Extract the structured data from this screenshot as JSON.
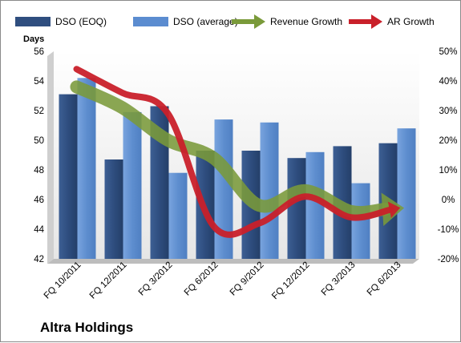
{
  "company_name": "Altra Holdings",
  "chart_data": {
    "type": "bar",
    "title": "",
    "ylabel": "Days",
    "ylim": [
      42,
      56
    ],
    "y2lim": [
      -0.2,
      0.5
    ],
    "y_ticks": [
      "42",
      "44",
      "46",
      "48",
      "50",
      "52",
      "54",
      "56"
    ],
    "y2_ticks": [
      "-20%",
      "-10%",
      "0%",
      "10%",
      "20%",
      "30%",
      "40%",
      "50%"
    ],
    "categories": [
      "FQ 10/2011",
      "FQ 12/2011",
      "FQ 3/2012",
      "FQ 6/2012",
      "FQ 9/2012",
      "FQ 12/2012",
      "FQ 3/2013",
      "FQ 6/2013"
    ],
    "legend_position": "top",
    "grid": false,
    "series": [
      {
        "name": "DSO (EOQ)",
        "kind": "bar",
        "axis": "left",
        "color": "#2f4e7f",
        "values": [
          53.1,
          48.7,
          52.3,
          49.3,
          49.3,
          48.8,
          49.6,
          49.8
        ]
      },
      {
        "name": "DSO (average)",
        "kind": "bar",
        "axis": "left",
        "color": "#5b8cd0",
        "values": [
          54.2,
          51.9,
          47.8,
          51.4,
          51.2,
          49.2,
          47.1,
          50.8
        ]
      },
      {
        "name": "Revenue Growth",
        "kind": "line",
        "axis": "right",
        "color": "#7a9a3a",
        "values": [
          0.38,
          0.31,
          0.2,
          0.14,
          -0.02,
          0.03,
          -0.04,
          -0.03
        ]
      },
      {
        "name": "AR Growth",
        "kind": "line",
        "axis": "right",
        "color": "#c9202a",
        "values": [
          0.44,
          0.36,
          0.29,
          -0.09,
          -0.08,
          0.01,
          -0.06,
          -0.03
        ]
      }
    ]
  }
}
